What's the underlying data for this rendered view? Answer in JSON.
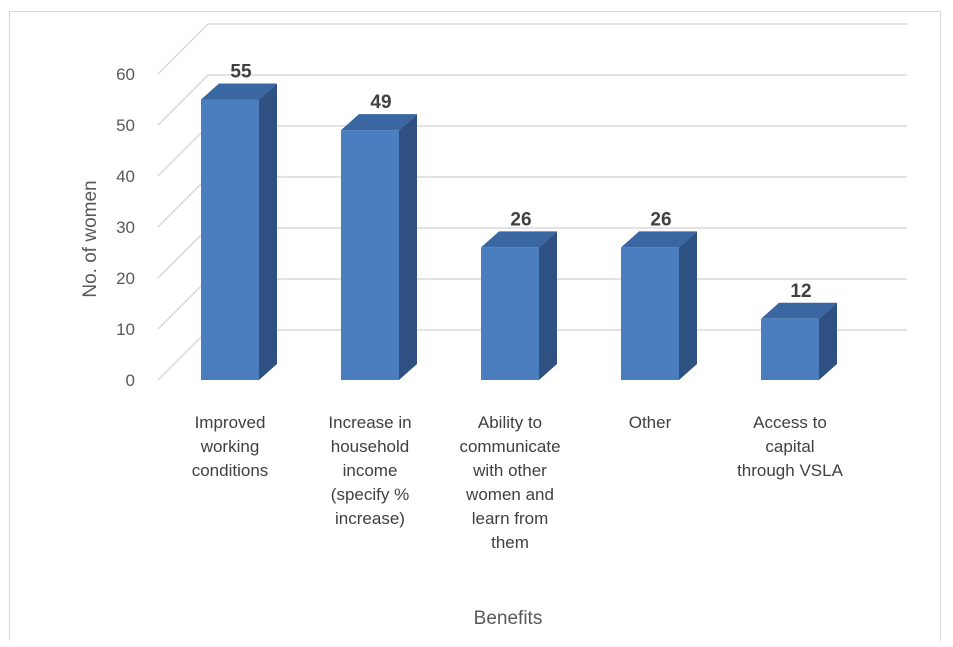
{
  "chart_data": {
    "type": "bar",
    "style": "3d-column",
    "categories": [
      [
        "Improved",
        "working",
        "conditions"
      ],
      [
        "Increase in",
        "household",
        "income",
        "(specify %",
        "increase)"
      ],
      [
        "Ability to",
        "communicate",
        "with other",
        "women and",
        "learn from",
        "them"
      ],
      [
        "Other"
      ],
      [
        "Access to",
        "capital",
        "through VSLA"
      ]
    ],
    "values": [
      55,
      49,
      26,
      26,
      12
    ],
    "data_labels": [
      "55",
      "49",
      "26",
      "26",
      "12"
    ],
    "xlabel": "Benefits",
    "ylabel": "No. of women",
    "ylim": [
      0,
      60
    ],
    "yticks": [
      "0",
      "10",
      "20",
      "30",
      "40",
      "50",
      "60"
    ],
    "grid": true,
    "legend": "none",
    "colors": {
      "bar_front": "#4a7ebf",
      "bar_side": "#2f5182",
      "bar_top": "#3a66a2",
      "grid": "#d9d9d9"
    }
  }
}
